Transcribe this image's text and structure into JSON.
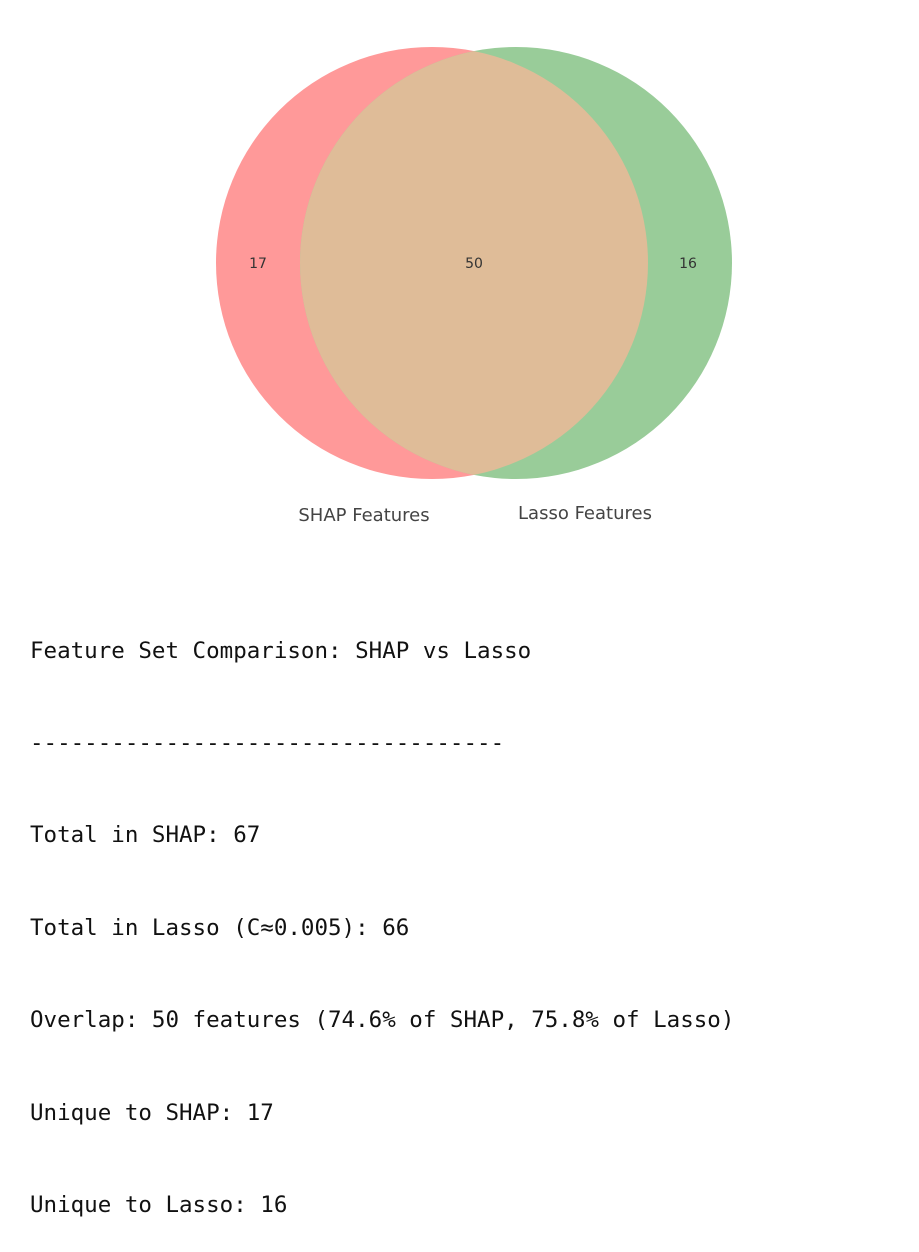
{
  "venn": {
    "sets": [
      {
        "label": "SHAP Features",
        "total": 67,
        "color": "#ff9999"
      },
      {
        "label": "Lasso Features",
        "total": 66,
        "color": "#99cc99"
      }
    ],
    "regions": {
      "shap_only": "17",
      "overlap": "50",
      "lasso_only": "16"
    },
    "overlap_color": "#dfbc98"
  },
  "summary": {
    "title": "Feature Set Comparison: SHAP vs Lasso",
    "divider": "-----------------------------------",
    "lines": [
      "Total in SHAP: 67",
      "Total in Lasso (C≈0.005): 66",
      "Overlap: 50 features (74.6% of SHAP, 75.8% of Lasso)",
      "Unique to SHAP: 17",
      "Unique to Lasso: 16"
    ]
  }
}
